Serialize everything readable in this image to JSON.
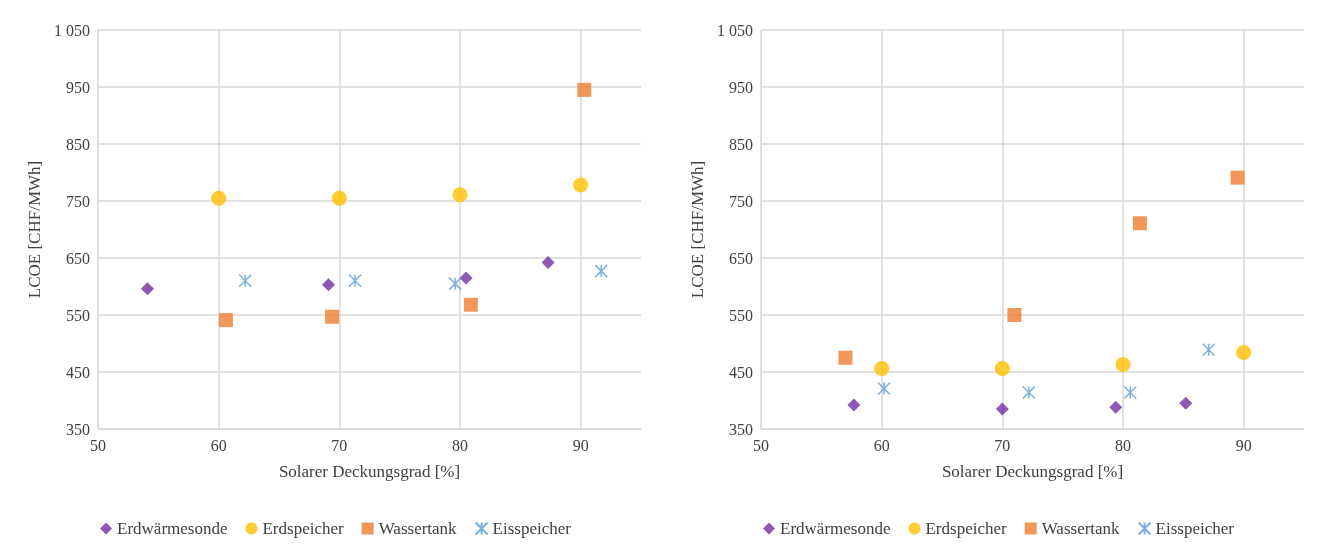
{
  "chart_data": [
    {
      "type": "scatter",
      "xlabel": "Solarer Deckungsgrad [%]",
      "ylabel": "LCOE [CHF/MWh]",
      "xlim": [
        50,
        95
      ],
      "xticks": [
        50,
        60,
        70,
        80,
        90
      ],
      "ylim": [
        350,
        1050
      ],
      "yticks": [
        350,
        450,
        550,
        650,
        750,
        850,
        950,
        {
          "value": 1050,
          "label": "1 050"
        }
      ],
      "grid": true,
      "legend": "bottom",
      "series": [
        {
          "name": "Erdwärmesonde",
          "color": "#7030a0",
          "marker": "diamond",
          "x": [
            54.1,
            69.1,
            80.5,
            87.3
          ],
          "values": [
            596,
            603,
            615,
            642
          ]
        },
        {
          "name": "Erdspeicher",
          "color": "#ffc000",
          "marker": "circle",
          "x": [
            60,
            70,
            80,
            90
          ],
          "values": [
            755,
            755,
            761,
            778
          ]
        },
        {
          "name": "Wassertank",
          "color": "#ed7d31",
          "marker": "square",
          "x": [
            60.6,
            69.4,
            80.9,
            90.3
          ],
          "values": [
            541,
            547,
            568,
            945
          ]
        },
        {
          "name": "Eisspeicher",
          "color": "#5b9bd5",
          "marker": "cross",
          "x": [
            62.2,
            71.3,
            79.6,
            91.7
          ],
          "values": [
            610,
            610,
            605,
            627
          ]
        }
      ]
    },
    {
      "type": "scatter",
      "xlabel": "Solarer Deckungsgrad [%]",
      "ylabel": "LCOE [CHF/MWh]",
      "xlim": [
        50,
        95
      ],
      "xticks": [
        50,
        60,
        70,
        80,
        90
      ],
      "ylim": [
        350,
        1050
      ],
      "yticks": [
        350,
        450,
        550,
        650,
        750,
        850,
        950,
        {
          "value": 1050,
          "label": "1 050"
        }
      ],
      "grid": true,
      "legend": "bottom",
      "series": [
        {
          "name": "Erdwärmesonde",
          "color": "#7030a0",
          "marker": "diamond",
          "x": [
            57.7,
            70,
            79.4,
            85.2
          ],
          "values": [
            392,
            385,
            388,
            395
          ]
        },
        {
          "name": "Erdspeicher",
          "color": "#ffc000",
          "marker": "circle",
          "x": [
            60,
            70,
            80,
            90
          ],
          "values": [
            456,
            456,
            463,
            484
          ]
        },
        {
          "name": "Wassertank",
          "color": "#ed7d31",
          "marker": "square",
          "x": [
            57,
            71,
            81.4,
            89.5
          ],
          "values": [
            475,
            550,
            711,
            791
          ]
        },
        {
          "name": "Eisspeicher",
          "color": "#5b9bd5",
          "marker": "cross",
          "x": [
            60.2,
            72.2,
            80.6,
            87.1
          ],
          "values": [
            421,
            414,
            414,
            489
          ]
        }
      ]
    }
  ]
}
